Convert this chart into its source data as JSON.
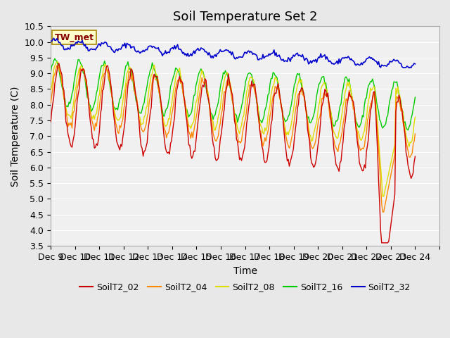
{
  "title": "Soil Temperature Set 2",
  "xlabel": "Time",
  "ylabel": "Soil Temperature (C)",
  "ylim": [
    3.5,
    10.5
  ],
  "yticks": [
    3.5,
    4.0,
    4.5,
    5.0,
    5.5,
    6.0,
    6.5,
    7.0,
    7.5,
    8.0,
    8.5,
    9.0,
    9.5,
    10.0,
    10.5
  ],
  "xtick_positions": [
    0,
    1,
    2,
    3,
    4,
    5,
    6,
    7,
    8,
    9,
    10,
    11,
    12,
    13,
    14,
    15,
    16
  ],
  "xtick_labels": [
    "Dec 9",
    "Dec 10",
    "Dec 11",
    "Dec 12",
    "Dec 13",
    "Dec 14",
    "Dec 15",
    "Dec 16",
    "Dec 17",
    "Dec 18",
    "Dec 19",
    "Dec 20",
    "Dec 21",
    "Dec 22",
    "Dec 23",
    "Dec 24",
    ""
  ],
  "colors": {
    "SoilT2_02": "#cc0000",
    "SoilT2_04": "#ff8800",
    "SoilT2_08": "#dddd00",
    "SoilT2_16": "#00cc00",
    "SoilT2_32": "#0000cc"
  },
  "background_color": "#e8e8e8",
  "plot_bg": "#f0f0f0",
  "annotation_label": "TW_met",
  "annotation_box_color": "#ffffcc",
  "annotation_text_color": "#880000",
  "title_fontsize": 13,
  "axis_fontsize": 10,
  "tick_fontsize": 9,
  "legend_fontsize": 9
}
